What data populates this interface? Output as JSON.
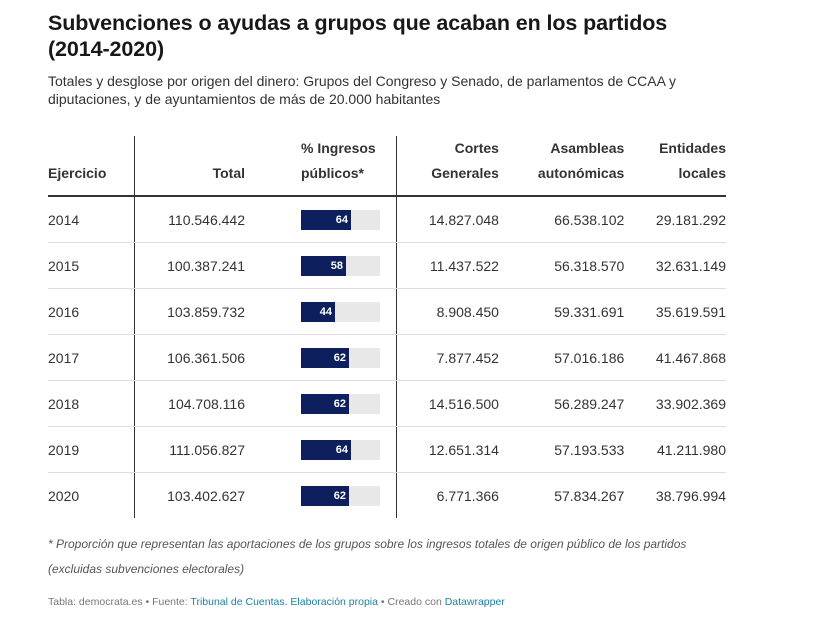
{
  "title": "Subvenciones o ayudas a grupos que acaban en los partidos (2014-2020)",
  "subtitle": "Totales y desglose por origen del dinero: Grupos del Congreso y Senado, de parlamentos de CCAA y diputaciones, y de ayuntamientos de más de 20.000 habitantes",
  "headers": {
    "year": "Ejercicio",
    "total": "Total",
    "pct_line1": "% Ingresos",
    "pct_line2": "públicos*",
    "cortes_line1": "Cortes",
    "cortes_line2": "Generales",
    "asambleas_line1": "Asambleas",
    "asambleas_line2": "autonómicas",
    "entidades_line1": "Entidades",
    "entidades_line2": "locales"
  },
  "colors": {
    "bar": "#0d1f5c",
    "track": "#e8e8e8",
    "link": "#1d81a2"
  },
  "chart_data": {
    "type": "table",
    "bar_column": "pct",
    "bar_max": 100,
    "rows": [
      {
        "year": "2014",
        "total": "110.546.442",
        "pct": 64,
        "cortes": "14.827.048",
        "asambleas": "66.538.102",
        "entidades": "29.181.292"
      },
      {
        "year": "2015",
        "total": "100.387.241",
        "pct": 58,
        "cortes": "11.437.522",
        "asambleas": "56.318.570",
        "entidades": "32.631.149"
      },
      {
        "year": "2016",
        "total": "103.859.732",
        "pct": 44,
        "cortes": "8.908.450",
        "asambleas": "59.331.691",
        "entidades": "35.619.591"
      },
      {
        "year": "2017",
        "total": "106.361.506",
        "pct": 62,
        "cortes": "7.877.452",
        "asambleas": "57.016.186",
        "entidades": "41.467.868"
      },
      {
        "year": "2018",
        "total": "104.708.116",
        "pct": 62,
        "cortes": "14.516.500",
        "asambleas": "56.289.247",
        "entidades": "33.902.369"
      },
      {
        "year": "2019",
        "total": "111.056.827",
        "pct": 64,
        "cortes": "12.651.314",
        "asambleas": "57.193.533",
        "entidades": "41.211.980"
      },
      {
        "year": "2020",
        "total": "103.402.627",
        "pct": 62,
        "cortes": "6.771.366",
        "asambleas": "57.834.267",
        "entidades": "38.796.994"
      }
    ]
  },
  "note": "* Proporción que representan las aportaciones de los grupos sobre los ingresos totales de origen público de los partidos (excluidas subvenciones electorales)",
  "footer": {
    "table_label": "Tabla: democrata.es",
    "sep1": " • Fuente: ",
    "source_link": "Tribunal de Cuentas. Elaboración propia",
    "sep2": " • Creado con ",
    "tool_link": "Datawrapper"
  }
}
